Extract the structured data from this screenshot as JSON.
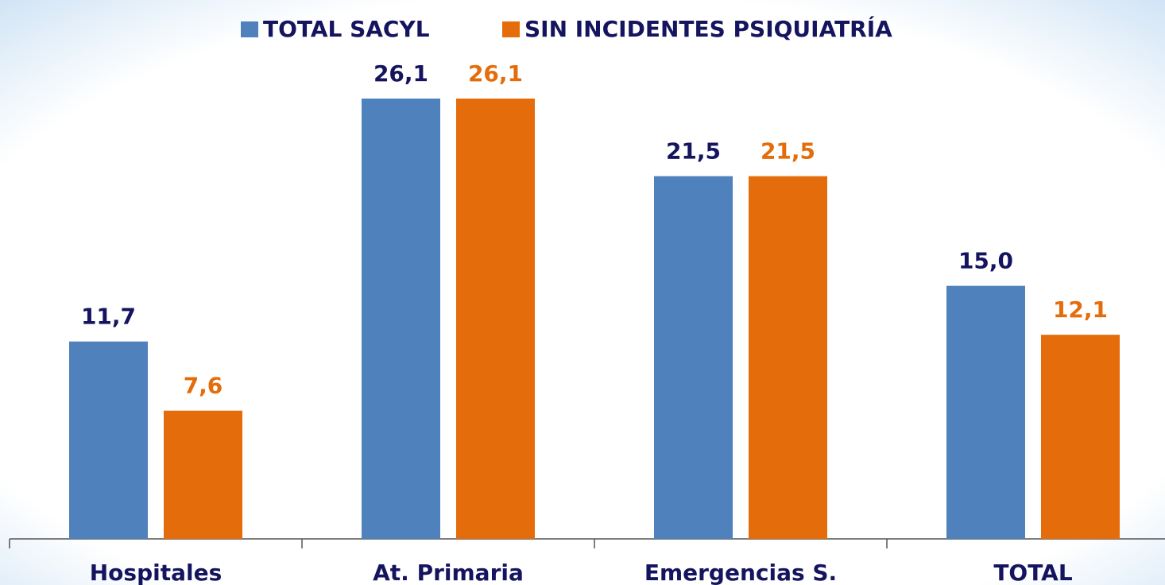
{
  "chart_data": {
    "type": "bar",
    "categories": [
      "Hospitales",
      "At. Primaria",
      "Emergencias S.",
      "TOTAL"
    ],
    "series": [
      {
        "name": "TOTAL SACYL",
        "color": "#4f81bd",
        "label_color": "#14145f",
        "values": [
          11.7,
          26.1,
          21.5,
          15.0
        ],
        "value_labels": [
          "11,7",
          "26,1",
          "21,5",
          "15,0"
        ]
      },
      {
        "name": "SIN INCIDENTES PSIQUIATRÍA",
        "color": "#e46c0a",
        "label_color": "#e46c0a",
        "values": [
          7.6,
          26.1,
          21.5,
          12.1
        ],
        "value_labels": [
          "7,6",
          "26,1",
          "21,5",
          "12,1"
        ]
      }
    ]
  }
}
